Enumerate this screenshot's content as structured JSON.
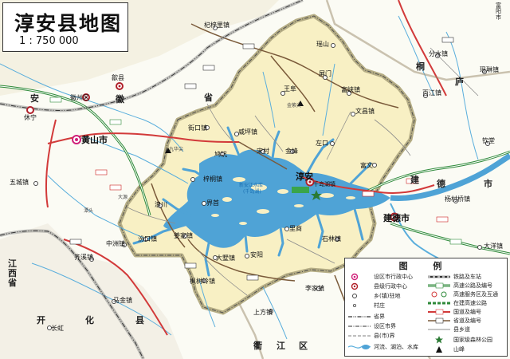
{
  "title": "淳安县地图",
  "scale": "1 : 750 000",
  "colors": {
    "county_fill": "#f8f0c4",
    "outside_fill": "#fbfbf4",
    "water": "#4fa3d6",
    "river": "#5aaedc",
    "boundary": "#b5ad85",
    "highway": "#2f8a3a",
    "national_road": "#d23a3a",
    "legend_bg": "#ffffff"
  },
  "places": [
    {
      "name": "淳安",
      "kind": "county_seat"
    },
    {
      "name": "千岛湖镇",
      "kind": "town"
    },
    {
      "name": "建德市",
      "kind": "city"
    },
    {
      "name": "黄山市",
      "kind": "city"
    },
    {
      "name": "歙县",
      "kind": "county"
    },
    {
      "name": "徽州区",
      "kind": "district"
    },
    {
      "name": "休宁",
      "kind": "county"
    },
    {
      "name": "安",
      "kind": "prov_char"
    },
    {
      "name": "徽",
      "kind": "prov_char"
    },
    {
      "name": "省",
      "kind": "prov_char"
    },
    {
      "name": "江西省",
      "kind": "province"
    },
    {
      "name": "桐",
      "kind": "county_char"
    },
    {
      "name": "庐",
      "kind": "county_char"
    },
    {
      "name": "富阳市",
      "kind": "city"
    },
    {
      "name": "杞梓里镇",
      "kind": "town"
    },
    {
      "name": "瑶山",
      "kind": "town"
    },
    {
      "name": "屏门",
      "kind": "town"
    },
    {
      "name": "王阜",
      "kind": "town"
    },
    {
      "name": "富峡镇",
      "kind": "town"
    },
    {
      "name": "文昌镇",
      "kind": "town"
    },
    {
      "name": "街口镇",
      "kind": "town"
    },
    {
      "name": "威坪镇",
      "kind": "town"
    },
    {
      "name": "鸠坑",
      "kind": "town"
    },
    {
      "name": "宋村",
      "kind": "town"
    },
    {
      "name": "金峰",
      "kind": "town"
    },
    {
      "name": "左口",
      "kind": "town"
    },
    {
      "name": "梓桐镇",
      "kind": "town"
    },
    {
      "name": "界首",
      "kind": "town"
    },
    {
      "name": "浪川",
      "kind": "town"
    },
    {
      "name": "汾口镇",
      "kind": "town"
    },
    {
      "name": "中洲镇",
      "kind": "town"
    },
    {
      "name": "姜家镇",
      "kind": "town"
    },
    {
      "name": "大墅镇",
      "kind": "town"
    },
    {
      "name": "安阳",
      "kind": "town"
    },
    {
      "name": "里商",
      "kind": "town"
    },
    {
      "name": "石林镇",
      "kind": "town"
    },
    {
      "name": "枫树岭镇",
      "kind": "town"
    },
    {
      "name": "上方镇",
      "kind": "town"
    },
    {
      "name": "李家镇",
      "kind": "town"
    },
    {
      "name": "富文",
      "kind": "town"
    },
    {
      "name": "杨村桥镇",
      "kind": "town"
    },
    {
      "name": "大洋镇",
      "kind": "town"
    },
    {
      "name": "分水镇",
      "kind": "town"
    },
    {
      "name": "瑶琳镇",
      "kind": "town"
    },
    {
      "name": "百江镇",
      "kind": "town"
    },
    {
      "name": "钦堂",
      "kind": "town"
    },
    {
      "name": "五城镇",
      "kind": "town"
    },
    {
      "name": "齐溪镇",
      "kind": "town"
    },
    {
      "name": "马金镇",
      "kind": "town"
    },
    {
      "name": "长虹",
      "kind": "town"
    },
    {
      "name": "开",
      "kind": "county_char"
    },
    {
      "name": "化",
      "kind": "county_char"
    },
    {
      "name": "县",
      "kind": "county_char"
    },
    {
      "name": "德",
      "kind": "county_char"
    },
    {
      "name": "建",
      "kind": "county_char"
    },
    {
      "name": "市",
      "kind": "county_char"
    },
    {
      "name": "衢",
      "kind": "county_char"
    },
    {
      "name": "江",
      "kind": "county_char"
    },
    {
      "name": "区",
      "kind": "county_char"
    },
    {
      "name": "新安江水库",
      "kind": "lake"
    },
    {
      "name": "(千岛湖)",
      "kind": "lake"
    },
    {
      "name": "金紫尖",
      "kind": "peak"
    },
    {
      "name": "九华尖",
      "kind": "peak"
    },
    {
      "name": "大源",
      "kind": "small"
    },
    {
      "name": "潭头",
      "kind": "small"
    }
  ],
  "legend": {
    "title": "图 例",
    "left": [
      {
        "label": "设区市行政中心",
        "icon": "city-center-icon"
      },
      {
        "label": "县级行政中心",
        "icon": "county-center-icon"
      },
      {
        "label": "乡(镇)驻地",
        "icon": "town-seat-icon"
      },
      {
        "label": "村庄",
        "icon": "village-icon"
      },
      {
        "label": "省界",
        "icon": "province-boundary-icon"
      },
      {
        "label": "设区市界",
        "icon": "city-boundary-icon"
      },
      {
        "label": "县(市)界",
        "icon": "county-boundary-icon"
      },
      {
        "label": "河流、湖泊、水库",
        "icon": "water-icon"
      }
    ],
    "right": [
      {
        "label": "铁路及车站",
        "icon": "railway-icon"
      },
      {
        "label": "高速公路及编号",
        "icon": "expressway-icon"
      },
      {
        "label": "高速服务区及互通",
        "icon": "service-area-icon"
      },
      {
        "label": "在建高速公路",
        "icon": "expressway-building-icon"
      },
      {
        "label": "国道及编号",
        "icon": "national-road-icon"
      },
      {
        "label": "省道及编号",
        "icon": "provincial-road-icon"
      },
      {
        "label": "县乡道",
        "icon": "county-road-icon"
      },
      {
        "label": "国家级森林公园",
        "icon": "forest-park-icon"
      },
      {
        "label": "山峰",
        "icon": "peak-icon"
      }
    ]
  }
}
